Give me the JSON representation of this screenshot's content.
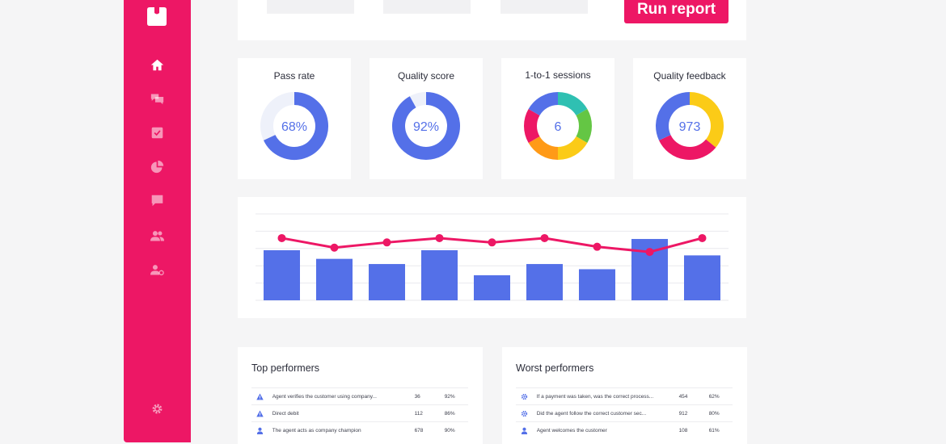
{
  "colors": {
    "brand": "#ed1765",
    "blue": "#5470e8",
    "track": "#eef1fa",
    "orange": "#ff9a17",
    "yellow": "#fbcb17",
    "green": "#64c644",
    "teal": "#2fc0b2"
  },
  "sidebar": {
    "logo_icon": "box-logo-icon",
    "items": [
      {
        "icon": "home-icon"
      },
      {
        "icon": "chat-bubbles-icon"
      },
      {
        "icon": "checklist-icon"
      },
      {
        "icon": "pie-chart-icon"
      },
      {
        "icon": "message-icon"
      },
      {
        "icon": "users-icon"
      },
      {
        "icon": "user-settings-icon"
      }
    ],
    "settings_icon": "gear-icon"
  },
  "toolbar": {
    "run_label": "Run report"
  },
  "kpis": [
    {
      "label": "Pass rate",
      "value": "68%",
      "fraction": 0.68
    },
    {
      "label": "Quality score",
      "value": "92%",
      "fraction": 0.92
    },
    {
      "label": "1-to-1 sessions",
      "value": "6",
      "segments": [
        "teal",
        "green",
        "yellow",
        "orange",
        "brand",
        "blue"
      ]
    },
    {
      "label": "Quality feedback",
      "value": "973",
      "segments": [
        "yellow",
        "brand",
        "blue"
      ],
      "segment_fractions": [
        0.36,
        0.32,
        0.32
      ]
    }
  ],
  "chart_data": {
    "type": "bar",
    "categories": [
      "",
      "",
      "",
      "",
      "",
      "",
      "",
      "",
      ""
    ],
    "ylim": [
      0,
      5
    ],
    "grid": true,
    "series": [
      {
        "type": "bar",
        "values": [
          2.9,
          2.4,
          2.1,
          2.9,
          1.45,
          2.1,
          1.8,
          3.55,
          2.6
        ]
      },
      {
        "type": "line",
        "values": [
          3.6,
          3.05,
          3.35,
          3.6,
          3.35,
          3.6,
          3.1,
          2.8,
          3.6
        ]
      }
    ]
  },
  "top_performers": {
    "title": "Top performers",
    "rows": [
      {
        "icon": "warning-icon",
        "text": "Agent verifies the customer using company...",
        "count": "36",
        "pct": "92%"
      },
      {
        "icon": "warning-icon",
        "text": "Direct debit",
        "count": "112",
        "pct": "86%"
      },
      {
        "icon": "person-icon",
        "text": "The agent acts as company champion",
        "count": "678",
        "pct": "90%"
      }
    ]
  },
  "worst_performers": {
    "title": "Worst performers",
    "rows": [
      {
        "icon": "gear-icon",
        "text": "If a payment was taken, was the correct process...",
        "count": "454",
        "pct": "62%"
      },
      {
        "icon": "gear-icon",
        "text": "Did the agent follow the correct customer sec...",
        "count": "912",
        "pct": "80%"
      },
      {
        "icon": "person-icon",
        "text": "Agent welcomes the customer",
        "count": "108",
        "pct": "61%"
      }
    ]
  }
}
